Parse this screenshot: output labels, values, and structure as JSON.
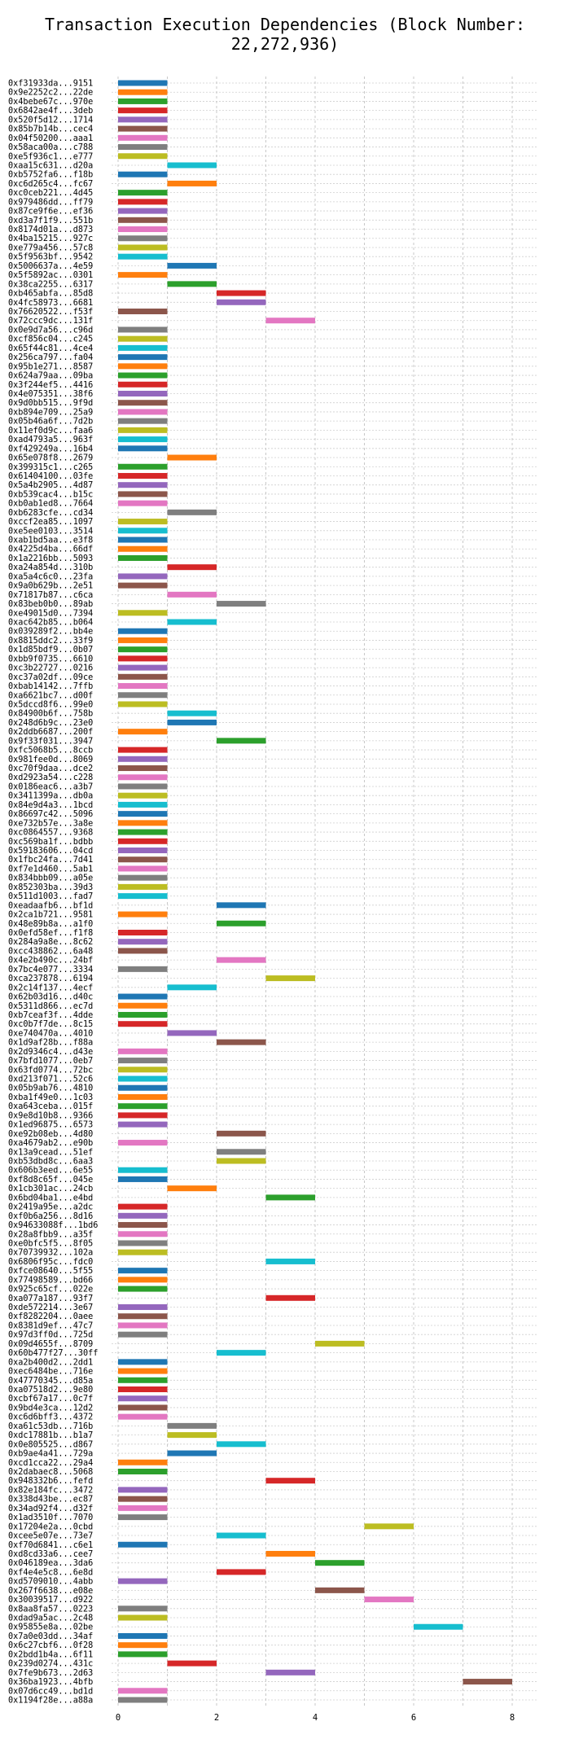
{
  "title": "Transaction Execution Dependencies (Block Number: 22,272,936)",
  "chart_data": {
    "type": "bar",
    "orientation": "horizontal",
    "title": "Transaction Execution Dependencies (Block Number: 22,272,936)",
    "xlabel": "",
    "ylabel": "",
    "xlim": [
      0,
      8.4
    ],
    "xticks": [
      0,
      2,
      4,
      6,
      8
    ],
    "grid": true,
    "legend": "none",
    "palette": [
      "#1f77b4",
      "#ff7f0e",
      "#2ca02c",
      "#d62728",
      "#9467bd",
      "#8c564b",
      "#e377c2",
      "#7f7f7f",
      "#bcbd22",
      "#17becf"
    ],
    "rows": [
      [
        "0xf31933da...9151",
        0
      ],
      [
        "0x9e2252c2...22de",
        0
      ],
      [
        "0x4bebe67c...970e",
        0
      ],
      [
        "0x6842ae4f...3deb",
        0
      ],
      [
        "0x520f5d12...1714",
        0
      ],
      [
        "0x85b7b14b...cec4",
        0
      ],
      [
        "0x04f50200...aaa1",
        0
      ],
      [
        "0x58aca00a...c788",
        0
      ],
      [
        "0xe5f936c1...e777",
        0
      ],
      [
        "0xaa15c631...d20a",
        1
      ],
      [
        "0xb5752fa6...f18b",
        0
      ],
      [
        "0xc6d265c4...fc67",
        1
      ],
      [
        "0xc0ceb221...4d45",
        0
      ],
      [
        "0x979486dd...ff79",
        0
      ],
      [
        "0x87ce9f6e...ef36",
        0
      ],
      [
        "0xd3a7f1f9...551b",
        0
      ],
      [
        "0x8174d01a...d873",
        0
      ],
      [
        "0x4ba15215...927c",
        0
      ],
      [
        "0xe779a456...57c8",
        0
      ],
      [
        "0x5f9563bf...9542",
        0
      ],
      [
        "0x5006637a...4e59",
        1
      ],
      [
        "0x5f5892ac...0301",
        0
      ],
      [
        "0x38ca2255...6317",
        1
      ],
      [
        "0xb465abfa...85d8",
        2
      ],
      [
        "0x4fc58973...6681",
        2
      ],
      [
        "0x76620522...f53f",
        0
      ],
      [
        "0x72ccc9dc...131f",
        3
      ],
      [
        "0x0e9d7a56...c96d",
        0
      ],
      [
        "0xcf856c04...c245",
        0
      ],
      [
        "0x65f44c81...4ce4",
        0
      ],
      [
        "0x256ca797...fa04",
        0
      ],
      [
        "0x95b1e271...8587",
        0
      ],
      [
        "0x624a79aa...09ba",
        0
      ],
      [
        "0x3f244ef5...4416",
        0
      ],
      [
        "0x4e075351...38f6",
        0
      ],
      [
        "0x9d0bb515...9f9d",
        0
      ],
      [
        "0xb894e709...25a9",
        0
      ],
      [
        "0x05b46a6f...7d2b",
        0
      ],
      [
        "0x11ef0d9c...faa6",
        0
      ],
      [
        "0xad4793a5...963f",
        0
      ],
      [
        "0xf429249a...16b4",
        0
      ],
      [
        "0x65e078f8...2679",
        1
      ],
      [
        "0x399315c1...c265",
        0
      ],
      [
        "0x61404100...03fe",
        0
      ],
      [
        "0x5a4b2905...4d87",
        0
      ],
      [
        "0xb539cac4...b15c",
        0
      ],
      [
        "0xb0ab1ed8...7664",
        0
      ],
      [
        "0xb6283cfe...cd34",
        1
      ],
      [
        "0xccf2ea85...1097",
        0
      ],
      [
        "0xe5ee0103...3514",
        0
      ],
      [
        "0xab1bd5aa...e3f8",
        0
      ],
      [
        "0x4225d4ba...66df",
        0
      ],
      [
        "0x1a2216bb...5093",
        0
      ],
      [
        "0xa24a854d...310b",
        1
      ],
      [
        "0xa5a4c6c0...23fa",
        0
      ],
      [
        "0x9a0b629b...2e51",
        0
      ],
      [
        "0x71817b87...c6ca",
        1
      ],
      [
        "0x83beb0b0...89ab",
        2
      ],
      [
        "0xe49015d0...7394",
        0
      ],
      [
        "0xac642b85...b064",
        1
      ],
      [
        "0x039289f2...bb4e",
        0
      ],
      [
        "0x8815ddc2...33f9",
        0
      ],
      [
        "0x1d85bdf9...0b07",
        0
      ],
      [
        "0xbb9f0735...6610",
        0
      ],
      [
        "0xc3b22727...0216",
        0
      ],
      [
        "0xc37a02df...09ce",
        0
      ],
      [
        "0xbab14142...7ffb",
        0
      ],
      [
        "0xa6621bc7...d00f",
        0
      ],
      [
        "0x5dccd8f6...99e0",
        0
      ],
      [
        "0x84900b6f...758b",
        1
      ],
      [
        "0x248d6b9c...23e0",
        1
      ],
      [
        "0x2ddb6687...200f",
        0
      ],
      [
        "0x9f33f031...3947",
        2
      ],
      [
        "0xfc5068b5...8ccb",
        0
      ],
      [
        "0x981fee0d...8069",
        0
      ],
      [
        "0xc70f9daa...dce2",
        0
      ],
      [
        "0xd2923a54...c228",
        0
      ],
      [
        "0x0186eac6...a3b7",
        0
      ],
      [
        "0x3411399a...db0a",
        0
      ],
      [
        "0x84e9d4a3...1bcd",
        0
      ],
      [
        "0x86697c42...5096",
        0
      ],
      [
        "0xe732b57e...3a8e",
        0
      ],
      [
        "0xc0864557...9368",
        0
      ],
      [
        "0xc569ba1f...bdbb",
        0
      ],
      [
        "0x59183606...04cd",
        0
      ],
      [
        "0x1fbc24fa...7d41",
        0
      ],
      [
        "0xf7e1d460...5ab1",
        0
      ],
      [
        "0x834bbb09...a05e",
        0
      ],
      [
        "0x852303ba...39d3",
        0
      ],
      [
        "0x511d1003...fad7",
        0
      ],
      [
        "0xeadaafb6...bf1d",
        2
      ],
      [
        "0x2ca1b721...9581",
        0
      ],
      [
        "0x48e89b8a...a1f0",
        2
      ],
      [
        "0x0efd58ef...f1f8",
        0
      ],
      [
        "0x284a9a8e...8c62",
        0
      ],
      [
        "0xcc438862...6a48",
        0
      ],
      [
        "0x4e2b490c...24bf",
        2
      ],
      [
        "0x7bc4e077...3334",
        0
      ],
      [
        "0xca237878...6194",
        3
      ],
      [
        "0x2c14f137...4ecf",
        1
      ],
      [
        "0x62b03d16...d40c",
        0
      ],
      [
        "0x5311d866...ec7d",
        0
      ],
      [
        "0xb7ceaf3f...4dde",
        0
      ],
      [
        "0xc0b7f7de...8c15",
        0
      ],
      [
        "0xe740470a...4010",
        1
      ],
      [
        "0x1d9af28b...f88a",
        2
      ],
      [
        "0x2d9346c4...d43e",
        0
      ],
      [
        "0x7bfd1077...0eb7",
        0
      ],
      [
        "0x63fd0774...72bc",
        0
      ],
      [
        "0xd213f071...52c6",
        0
      ],
      [
        "0x05b9ab76...4810",
        0
      ],
      [
        "0xba1f49e0...1c03",
        0
      ],
      [
        "0xa643ceba...015f",
        0
      ],
      [
        "0x9e8d10b8...9366",
        0
      ],
      [
        "0x1ed96875...6573",
        0
      ],
      [
        "0xe92b08eb...4d80",
        2
      ],
      [
        "0xa4679ab2...e90b",
        0
      ],
      [
        "0x13a9cead...51ef",
        2
      ],
      [
        "0xb53dbd8c...6aa3",
        2
      ],
      [
        "0x606b3eed...6e55",
        0
      ],
      [
        "0xf8d8c65f...045e",
        0
      ],
      [
        "0x1cb301ac...24cb",
        1
      ],
      [
        "0x6bd04ba1...e4bd",
        3
      ],
      [
        "0x2419a95e...a2dc",
        0
      ],
      [
        "0xf0b6a256...8d16",
        0
      ],
      [
        "0x94633088f...1bd6",
        0
      ],
      [
        "0x28a8fbb9...a35f",
        0
      ],
      [
        "0xe0bfc5f5...8f05",
        0
      ],
      [
        "0x70739932...102a",
        0
      ],
      [
        "0x6806f95c...fdc0",
        3
      ],
      [
        "0xfce08640...5f55",
        0
      ],
      [
        "0x77498589...bd66",
        0
      ],
      [
        "0x925c65cf...022e",
        0
      ],
      [
        "0xa077a187...93f7",
        3
      ],
      [
        "0xde572214...3e67",
        0
      ],
      [
        "0xf8282204...0aee",
        0
      ],
      [
        "0x8381d9ef...47c7",
        0
      ],
      [
        "0x97d3ff0d...725d",
        0
      ],
      [
        "0x09d4655f...8709",
        4
      ],
      [
        "0x60b477f27...30ff",
        2
      ],
      [
        "0xa2b400d2...2dd1",
        0
      ],
      [
        "0xec6484be...716e",
        0
      ],
      [
        "0x47770345...d85a",
        0
      ],
      [
        "0xa07518d2...9e80",
        0
      ],
      [
        "0xcbf67a17...0c7f",
        0
      ],
      [
        "0x9bd4e3ca...12d2",
        0
      ],
      [
        "0xc6d6bff3...4372",
        0
      ],
      [
        "0xa61c53db...716b",
        1
      ],
      [
        "0xdc17881b...b1a7",
        1
      ],
      [
        "0x0e805525...d867",
        2
      ],
      [
        "0xb9ae4a41...729a",
        1
      ],
      [
        "0xcd1cca22...29a4",
        0
      ],
      [
        "0x2dabaec8...5068",
        0
      ],
      [
        "0x948332b6...fefd",
        3
      ],
      [
        "0x82e184fc...3472",
        0
      ],
      [
        "0x338d43be...ec87",
        0
      ],
      [
        "0x34ad92f4...d32f",
        0
      ],
      [
        "0x1ad3510f...7070",
        0
      ],
      [
        "0x17204e2a...0cbd",
        5
      ],
      [
        "0xcee5e07e...73e7",
        2
      ],
      [
        "0xf70d6841...c6e1",
        0
      ],
      [
        "0xd8cd33a6...cee7",
        3
      ],
      [
        "0x046189ea...3da6",
        4
      ],
      [
        "0xf4e4e5c8...6e8d",
        2
      ],
      [
        "0xd5709010...4abb",
        0
      ],
      [
        "0x267f6638...e08e",
        4
      ],
      [
        "0x30039517...d922",
        5
      ],
      [
        "0x8aa8fa57...0223",
        0
      ],
      [
        "0xdad9a5ac...2c48",
        0
      ],
      [
        "0x95855e8a...02be",
        6
      ],
      [
        "0x7a0e03dd...34af",
        0
      ],
      [
        "0x6c27cbf6...0f28",
        0
      ],
      [
        "0x2bdd1b4a...6f11",
        0
      ],
      [
        "0x239d0274...431c",
        1
      ],
      [
        "0x7fe9b673...2d63",
        3
      ],
      [
        "0x36ba1923...4bfb",
        7
      ],
      [
        "0x07d6cc49...bd1d",
        0
      ],
      [
        "0x1194f28e...a88a",
        0
      ]
    ]
  }
}
